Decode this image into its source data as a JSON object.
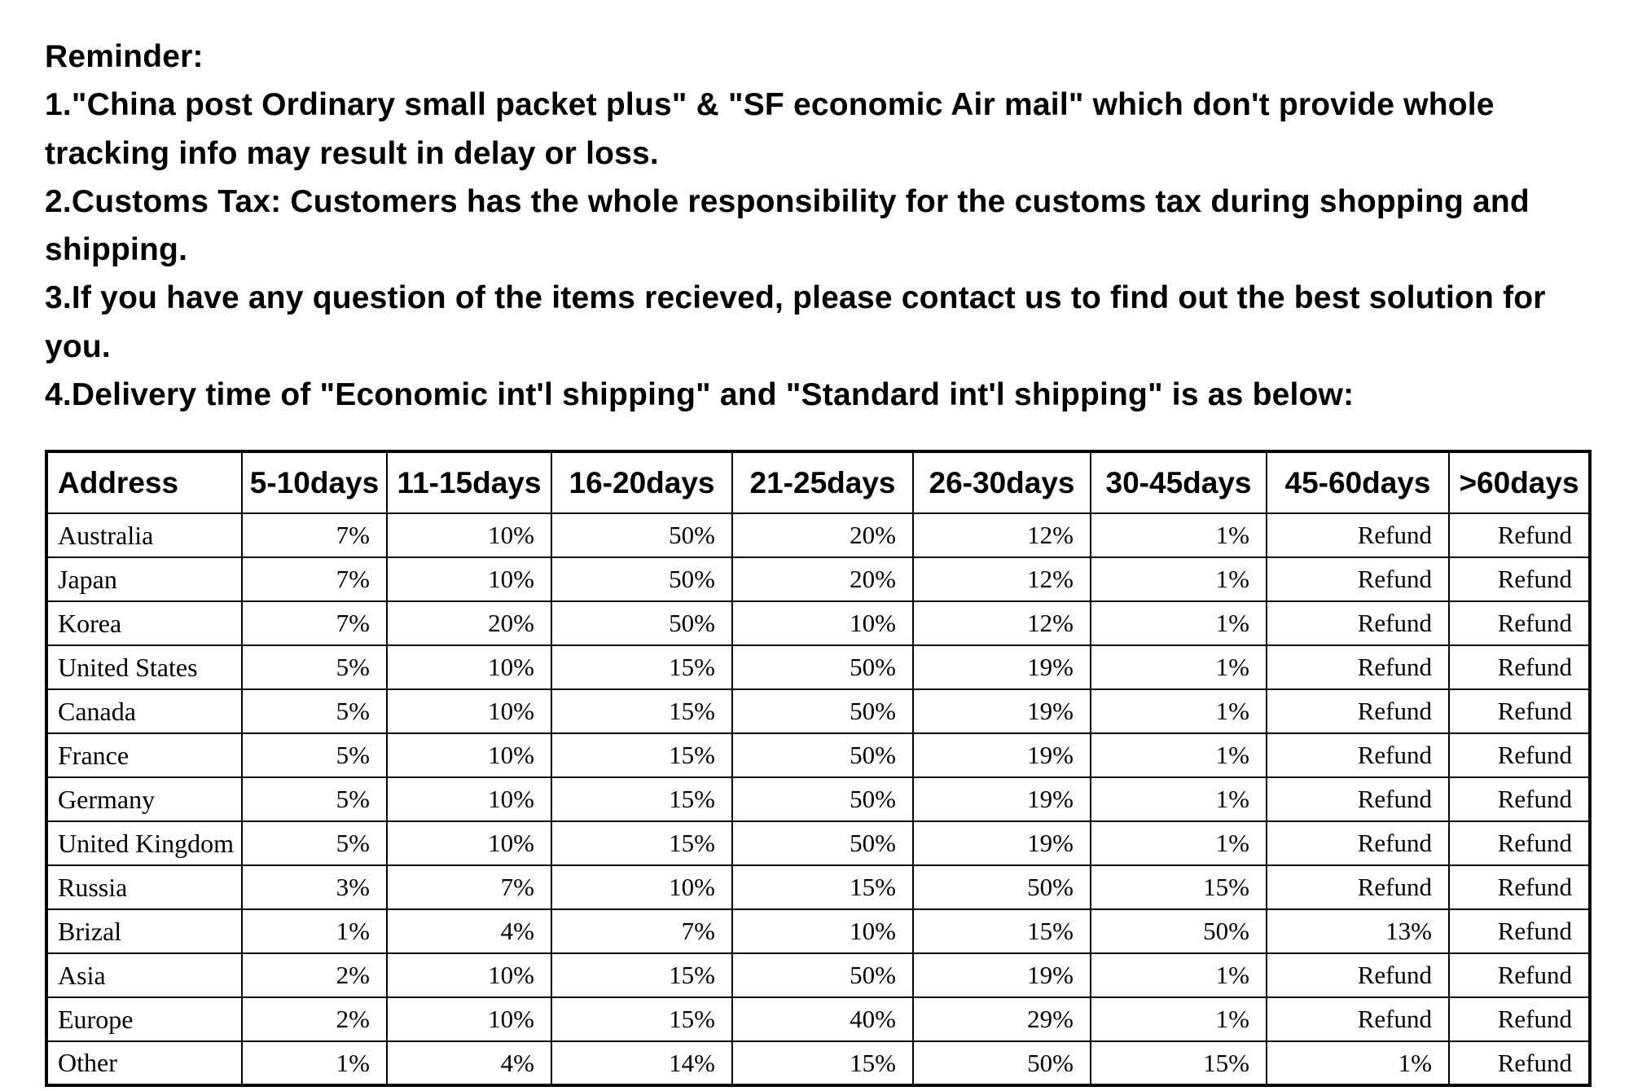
{
  "reminder": {
    "title": "Reminder:",
    "lines": [
      "1.\"China post Ordinary small packet plus\" & \"SF economic Air mail\" which don't provide whole tracking info may result in delay or loss.",
      "2.Customs Tax: Customers has the whole responsibility for the customs tax during shopping and shipping.",
      "3.If you have any question of the items recieved, please contact us to find out the best solution for you.",
      "4.Delivery time of \"Economic int'l shipping\" and \"Standard int'l shipping\" is as below:"
    ]
  },
  "delivery_table": {
    "type": "table",
    "border_color": "#000000",
    "background_color": "#ffffff",
    "header_font_weight": 700,
    "body_font_family": "Georgia, serif",
    "columns": [
      {
        "key": "address",
        "label": "Address",
        "align": "left"
      },
      {
        "key": "d5_10",
        "label": "5-10days",
        "align": "right"
      },
      {
        "key": "d11_15",
        "label": "11-15days",
        "align": "right"
      },
      {
        "key": "d16_20",
        "label": "16-20days",
        "align": "right"
      },
      {
        "key": "d21_25",
        "label": "21-25days",
        "align": "right"
      },
      {
        "key": "d26_30",
        "label": "26-30days",
        "align": "right"
      },
      {
        "key": "d30_45",
        "label": "30-45days",
        "align": "right"
      },
      {
        "key": "d45_60",
        "label": "45-60days",
        "align": "right"
      },
      {
        "key": "d60p",
        "label": ">60days",
        "align": "right"
      }
    ],
    "rows": [
      {
        "address": "Australia",
        "d5_10": "7%",
        "d11_15": "10%",
        "d16_20": "50%",
        "d21_25": "20%",
        "d26_30": "12%",
        "d30_45": "1%",
        "d45_60": "Refund",
        "d60p": "Refund"
      },
      {
        "address": "Japan",
        "d5_10": "7%",
        "d11_15": "10%",
        "d16_20": "50%",
        "d21_25": "20%",
        "d26_30": "12%",
        "d30_45": "1%",
        "d45_60": "Refund",
        "d60p": "Refund"
      },
      {
        "address": "Korea",
        "d5_10": "7%",
        "d11_15": "20%",
        "d16_20": "50%",
        "d21_25": "10%",
        "d26_30": "12%",
        "d30_45": "1%",
        "d45_60": "Refund",
        "d60p": "Refund"
      },
      {
        "address": "United States",
        "d5_10": "5%",
        "d11_15": "10%",
        "d16_20": "15%",
        "d21_25": "50%",
        "d26_30": "19%",
        "d30_45": "1%",
        "d45_60": "Refund",
        "d60p": "Refund"
      },
      {
        "address": "Canada",
        "d5_10": "5%",
        "d11_15": "10%",
        "d16_20": "15%",
        "d21_25": "50%",
        "d26_30": "19%",
        "d30_45": "1%",
        "d45_60": "Refund",
        "d60p": "Refund"
      },
      {
        "address": "France",
        "d5_10": "5%",
        "d11_15": "10%",
        "d16_20": "15%",
        "d21_25": "50%",
        "d26_30": "19%",
        "d30_45": "1%",
        "d45_60": "Refund",
        "d60p": "Refund"
      },
      {
        "address": "Germany",
        "d5_10": "5%",
        "d11_15": "10%",
        "d16_20": "15%",
        "d21_25": "50%",
        "d26_30": "19%",
        "d30_45": "1%",
        "d45_60": "Refund",
        "d60p": "Refund"
      },
      {
        "address": "United Kingdom",
        "d5_10": "5%",
        "d11_15": "10%",
        "d16_20": "15%",
        "d21_25": "50%",
        "d26_30": "19%",
        "d30_45": "1%",
        "d45_60": "Refund",
        "d60p": "Refund"
      },
      {
        "address": "Russia",
        "d5_10": "3%",
        "d11_15": "7%",
        "d16_20": "10%",
        "d21_25": "15%",
        "d26_30": "50%",
        "d30_45": "15%",
        "d45_60": "Refund",
        "d60p": "Refund"
      },
      {
        "address": "Brizal",
        "d5_10": "1%",
        "d11_15": "4%",
        "d16_20": "7%",
        "d21_25": "10%",
        "d26_30": "15%",
        "d30_45": "50%",
        "d45_60": "13%",
        "d60p": "Refund"
      },
      {
        "address": "Asia",
        "d5_10": "2%",
        "d11_15": "10%",
        "d16_20": "15%",
        "d21_25": "50%",
        "d26_30": "19%",
        "d30_45": "1%",
        "d45_60": "Refund",
        "d60p": "Refund"
      },
      {
        "address": "Europe",
        "d5_10": "2%",
        "d11_15": "10%",
        "d16_20": "15%",
        "d21_25": "40%",
        "d26_30": "29%",
        "d30_45": "1%",
        "d45_60": "Refund",
        "d60p": "Refund"
      },
      {
        "address": "Other",
        "d5_10": "1%",
        "d11_15": "4%",
        "d16_20": "14%",
        "d21_25": "15%",
        "d26_30": "50%",
        "d30_45": "15%",
        "d45_60": "1%",
        "d60p": "Refund"
      }
    ]
  }
}
